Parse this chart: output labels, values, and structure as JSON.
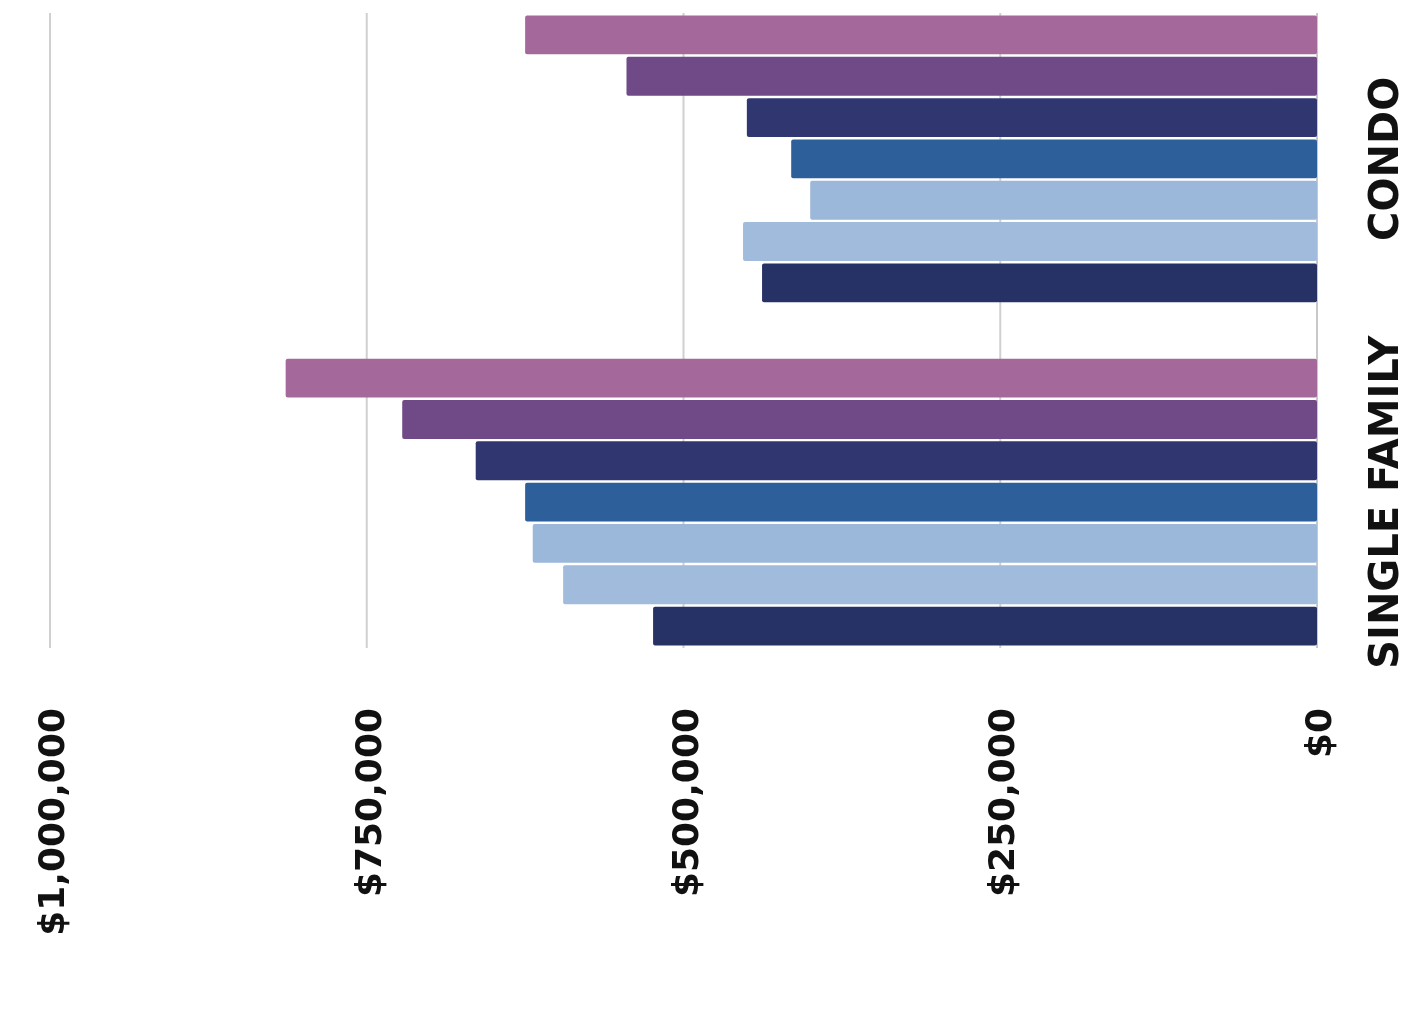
{
  "chart_data": {
    "type": "bar",
    "orientation": "horizontal",
    "categories": [
      "CONDO",
      "SINGLE FAMILY"
    ],
    "series": [
      {
        "color": "#a5689a",
        "values": [
          625000,
          814000
        ]
      },
      {
        "color": "#6f4a86",
        "values": [
          545000,
          722000
        ]
      },
      {
        "color": "#2f3670",
        "values": [
          450000,
          664000
        ]
      },
      {
        "color": "#2d5f9a",
        "values": [
          415000,
          625000
        ]
      },
      {
        "color": "#9bb7d9",
        "values": [
          400000,
          619000
        ]
      },
      {
        "color": "#a0bbdb",
        "values": [
          453000,
          595000
        ]
      },
      {
        "color": "#263166",
        "values": [
          438000,
          524000
        ]
      }
    ],
    "xlim": [
      1000000,
      0
    ],
    "xticks": [
      {
        "value": 1000000,
        "label": "$1,000,000"
      },
      {
        "value": 750000,
        "label": "$750,000"
      },
      {
        "value": 500000,
        "label": "$500,000"
      },
      {
        "value": 250000,
        "label": "$250,000"
      },
      {
        "value": 0,
        "label": "$0"
      }
    ],
    "grid": "x"
  }
}
